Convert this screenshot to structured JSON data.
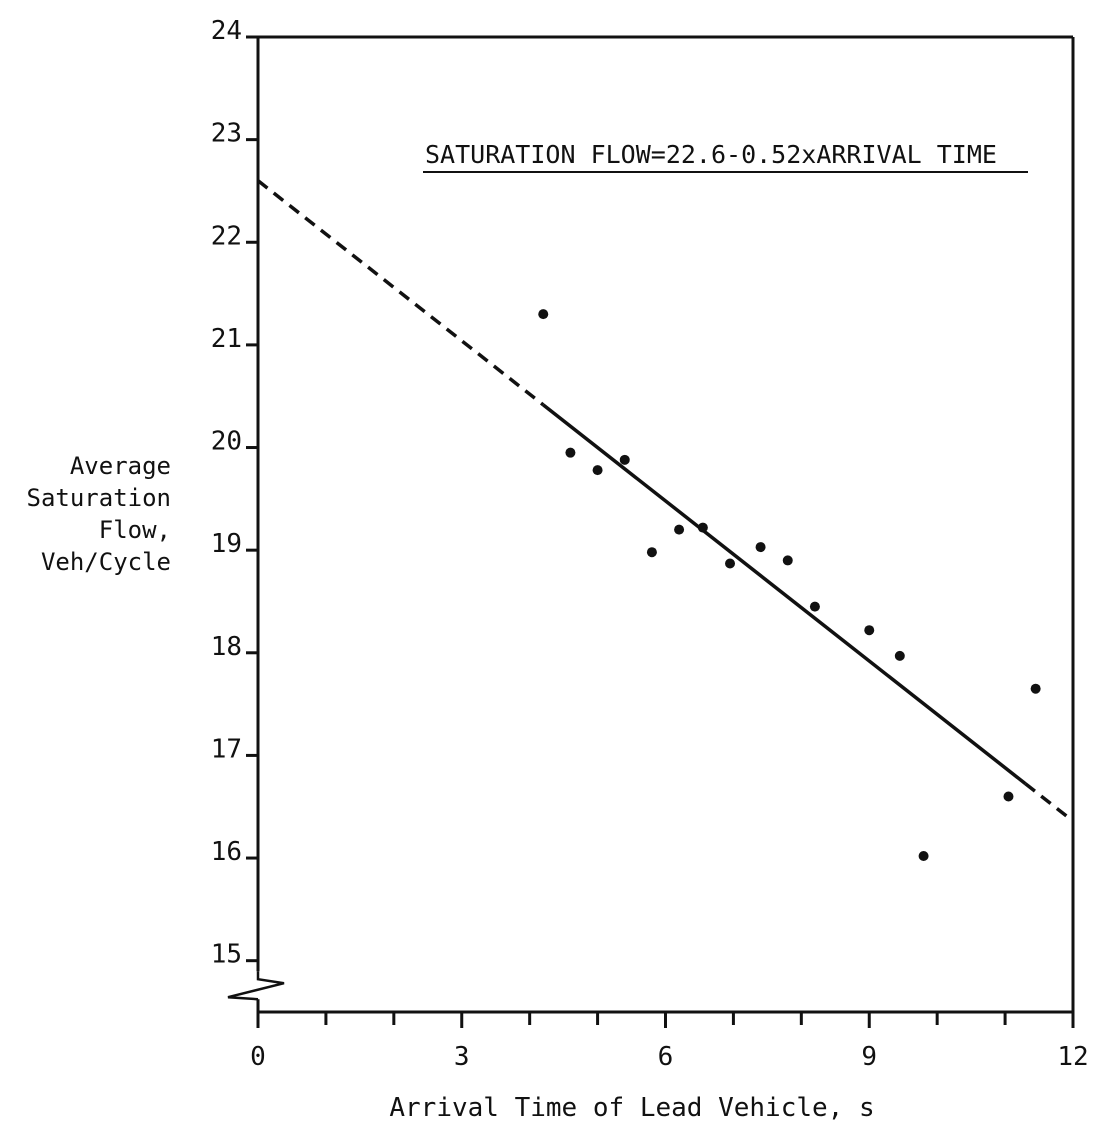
{
  "chart_data": {
    "type": "scatter",
    "title": "",
    "xlabel": "Arrival Time of Lead Vehicle, s",
    "ylabel_lines": [
      "Average",
      "Saturation",
      "Flow,",
      "Veh/Cycle"
    ],
    "xlim": [
      0,
      12
    ],
    "ylim": [
      15,
      24
    ],
    "x_ticks": [
      0,
      3,
      6,
      9,
      12
    ],
    "x_minor_ticks": [
      1,
      2,
      4,
      5,
      7,
      8,
      10,
      11
    ],
    "y_ticks": [
      15,
      16,
      17,
      18,
      19,
      20,
      21,
      22,
      23,
      24
    ],
    "y_axis_break": true,
    "grid": false,
    "annotation": "SATURATION FLOW=22.6-0.52xARRIVAL TIME",
    "series": [
      {
        "type": "scatter",
        "points": [
          {
            "x": 4.2,
            "y": 21.3
          },
          {
            "x": 4.6,
            "y": 19.95
          },
          {
            "x": 5.0,
            "y": 19.78
          },
          {
            "x": 5.4,
            "y": 19.88
          },
          {
            "x": 5.8,
            "y": 18.98
          },
          {
            "x": 6.2,
            "y": 19.2
          },
          {
            "x": 6.55,
            "y": 19.22
          },
          {
            "x": 6.95,
            "y": 18.87
          },
          {
            "x": 7.4,
            "y": 19.03
          },
          {
            "x": 7.8,
            "y": 18.9
          },
          {
            "x": 8.2,
            "y": 18.45
          },
          {
            "x": 9.0,
            "y": 18.22
          },
          {
            "x": 9.45,
            "y": 17.97
          },
          {
            "x": 9.8,
            "y": 16.02
          },
          {
            "x": 11.05,
            "y": 16.6
          },
          {
            "x": 11.45,
            "y": 17.65
          }
        ]
      },
      {
        "type": "line",
        "intercept": 22.6,
        "slope": -0.52,
        "dashed_ranges": [
          [
            0,
            4.2
          ],
          [
            11.3,
            12
          ]
        ],
        "solid_range": [
          4.2,
          11.3
        ]
      }
    ]
  }
}
